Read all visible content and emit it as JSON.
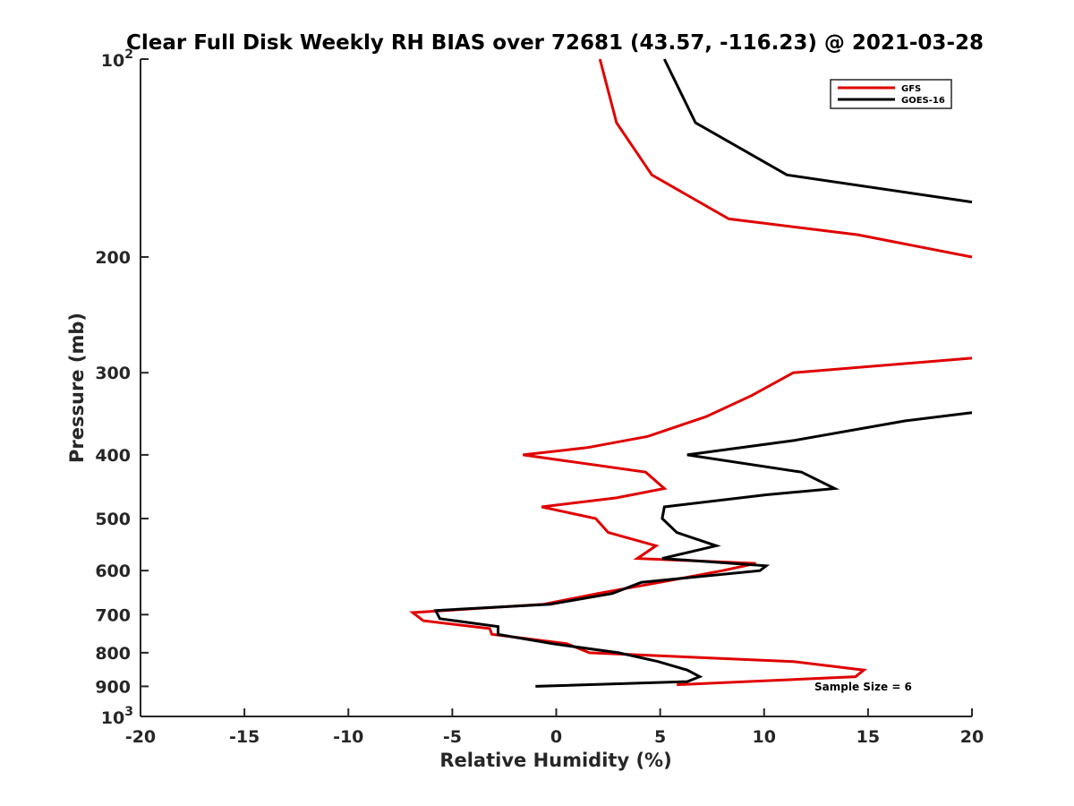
{
  "chart_data": {
    "type": "line",
    "title": "Clear Full Disk Weekly RH BIAS over 72681 (43.57, -116.23) @ 2021-03-28",
    "xlabel": "Relative Humidity (%)",
    "ylabel": "Pressure (mb)",
    "xlim": [
      -20,
      20
    ],
    "ylim": [
      100,
      1000
    ],
    "y_scale": "log",
    "y_reversed": true,
    "grid": false,
    "legend_position": "top-right",
    "x_ticks": [
      "-20",
      "-15",
      "-10",
      "-5",
      "0",
      "5",
      "10",
      "15",
      "20"
    ],
    "y_ticks": [
      {
        "value": 100,
        "label": "10",
        "sup": "2"
      },
      {
        "value": 200,
        "label": "200"
      },
      {
        "value": 300,
        "label": "300"
      },
      {
        "value": 400,
        "label": "400"
      },
      {
        "value": 500,
        "label": "500"
      },
      {
        "value": 600,
        "label": "600"
      },
      {
        "value": 700,
        "label": "700"
      },
      {
        "value": 800,
        "label": "800"
      },
      {
        "value": 900,
        "label": "900"
      },
      {
        "value": 1000,
        "label": "10",
        "sup": "3"
      }
    ],
    "annotation": "Sample Size = 6",
    "series": [
      {
        "name": "GFS",
        "color": "#e00000",
        "segments": [
          [
            [
              2.1,
              100
            ],
            [
              2.9,
              125
            ],
            [
              4.6,
              150
            ],
            [
              8.3,
              175
            ],
            [
              14.5,
              185
            ],
            [
              20,
              200
            ]
          ],
          [
            [
              20,
              285
            ],
            [
              11.4,
              300
            ],
            [
              9.4,
              325
            ],
            [
              7.2,
              350
            ],
            [
              4.4,
              375
            ],
            [
              1.5,
              390
            ],
            [
              -1.6,
              400
            ],
            [
              4.3,
              425
            ],
            [
              5.2,
              450
            ],
            [
              2.9,
              465
            ],
            [
              -0.7,
              480
            ],
            [
              1.9,
              500
            ],
            [
              2.5,
              525
            ],
            [
              4.8,
              550
            ],
            [
              3.9,
              575
            ],
            [
              9.6,
              585
            ],
            [
              8.0,
              600
            ],
            [
              5.0,
              625
            ],
            [
              2.0,
              650
            ],
            [
              -0.6,
              675
            ],
            [
              -6.9,
              695
            ],
            [
              -6.4,
              715
            ],
            [
              -3.2,
              735
            ],
            [
              -3.1,
              750
            ],
            [
              0.5,
              775
            ],
            [
              1.6,
              800
            ],
            [
              11.4,
              825
            ],
            [
              14.8,
              850
            ],
            [
              14.4,
              870
            ],
            [
              5.8,
              895
            ]
          ]
        ]
      },
      {
        "name": "GOES-16",
        "color": "#000000",
        "segments": [
          [
            [
              5.2,
              100
            ],
            [
              6.7,
              125
            ],
            [
              11.1,
              150
            ],
            [
              20,
              165
            ]
          ],
          [
            [
              20,
              345
            ],
            [
              16.8,
              355
            ],
            [
              11.5,
              380
            ],
            [
              6.3,
              400
            ],
            [
              11.8,
              425
            ],
            [
              13.4,
              450
            ],
            [
              10.1,
              460
            ],
            [
              5.2,
              480
            ],
            [
              5.1,
              500
            ],
            [
              5.8,
              525
            ],
            [
              7.7,
              550
            ],
            [
              5.1,
              575
            ],
            [
              10.1,
              590
            ],
            [
              9.8,
              600
            ],
            [
              4.1,
              625
            ],
            [
              2.7,
              650
            ],
            [
              -0.3,
              675
            ],
            [
              -5.8,
              690
            ],
            [
              -5.6,
              710
            ],
            [
              -2.8,
              730
            ],
            [
              -2.8,
              750
            ],
            [
              -0.2,
              775
            ],
            [
              3.0,
              800
            ],
            [
              4.9,
              825
            ],
            [
              6.3,
              850
            ],
            [
              6.9,
              870
            ],
            [
              6.3,
              885
            ],
            [
              -1.0,
              900
            ]
          ]
        ]
      }
    ]
  }
}
